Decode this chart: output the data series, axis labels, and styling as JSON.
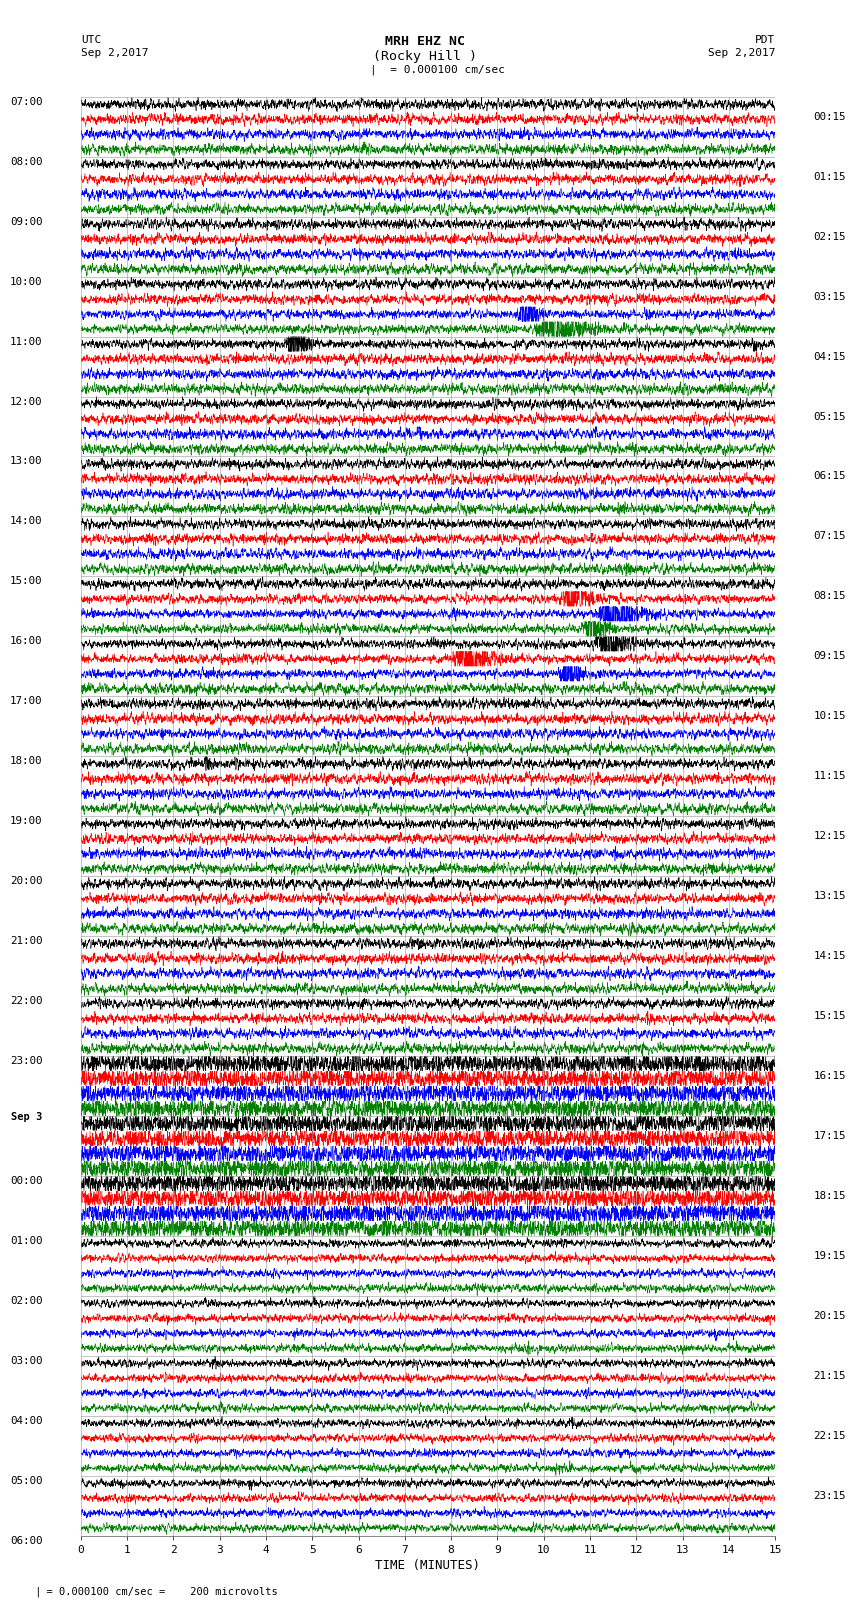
{
  "title_line1": "MRH EHZ NC",
  "title_line2": "(Rocky Hill )",
  "scale_text": "= 0.000100 cm/sec",
  "label_utc": "UTC",
  "label_pdt": "PDT",
  "date_left": "Sep 2,2017",
  "date_right": "Sep 2,2017",
  "xlabel": "TIME (MINUTES)",
  "footer": "= 0.000100 cm/sec =    200 microvolts",
  "left_times": [
    "07:00",
    "08:00",
    "09:00",
    "10:00",
    "11:00",
    "12:00",
    "13:00",
    "14:00",
    "15:00",
    "16:00",
    "17:00",
    "18:00",
    "19:00",
    "20:00",
    "21:00",
    "22:00",
    "23:00",
    "Sep 3",
    "00:00",
    "01:00",
    "02:00",
    "03:00",
    "04:00",
    "05:00",
    "06:00"
  ],
  "right_times": [
    "00:15",
    "01:15",
    "02:15",
    "03:15",
    "04:15",
    "05:15",
    "06:15",
    "07:15",
    "08:15",
    "09:15",
    "10:15",
    "11:15",
    "12:15",
    "13:15",
    "14:15",
    "15:15",
    "16:15",
    "17:15",
    "18:15",
    "19:15",
    "20:15",
    "21:15",
    "22:15",
    "23:15"
  ],
  "colors": [
    "black",
    "red",
    "blue",
    "green"
  ],
  "n_rows": 96,
  "n_pts": 3000,
  "x_min": 0,
  "x_max": 15,
  "bg_color": "white",
  "grid_color": "#888888",
  "figwidth": 8.5,
  "figheight": 16.13
}
